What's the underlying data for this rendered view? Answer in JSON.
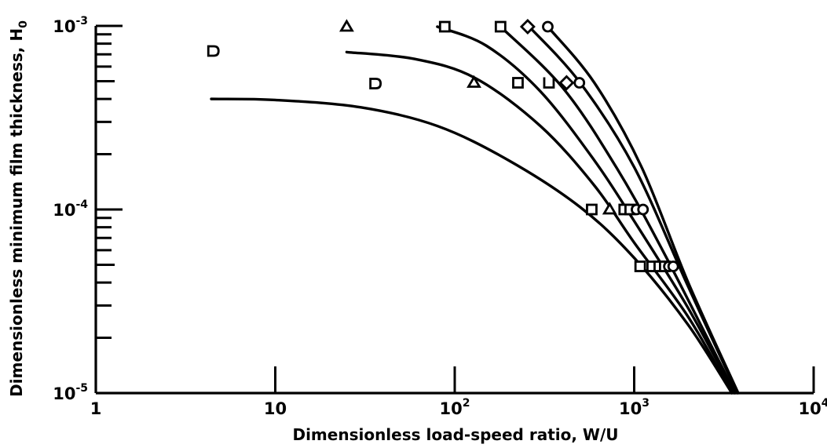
{
  "chart_data": {
    "type": "line",
    "title": "",
    "xlabel": "Dimensionless load-speed ratio, W/U",
    "ylabel_main": "Dimensionless minimum film thickness, H",
    "ylabel_sub": "0",
    "xscale": "log",
    "yscale": "log",
    "xlim": [
      1,
      10000
    ],
    "ylim": [
      1e-05,
      0.001
    ],
    "grid": false,
    "legend": "none",
    "x_ticks": [
      {
        "base": "1",
        "exp": ""
      },
      {
        "base": "10",
        "exp": ""
      },
      {
        "base": "10",
        "exp": "2"
      },
      {
        "base": "10",
        "exp": "3"
      },
      {
        "base": "10",
        "exp": "4"
      }
    ],
    "y_ticks": [
      {
        "base": "10",
        "exp": "-5"
      },
      {
        "base": "10",
        "exp": "-4"
      },
      {
        "base": "10",
        "exp": "-3"
      }
    ],
    "series": [
      {
        "curve": [
          [
            4.4,
            0.0004
          ],
          [
            10,
            0.000395
          ],
          [
            30,
            0.00036
          ],
          [
            80,
            0.000285
          ],
          [
            200,
            0.000185
          ],
          [
            500,
            0.000103
          ],
          [
            1000,
            5.45e-05
          ],
          [
            2000,
            2.35e-05
          ],
          [
            3500,
            1e-05
          ]
        ],
        "points": [
          {
            "marker": "D",
            "x": 4.5,
            "y": 0.00073
          },
          {
            "marker": "D",
            "x": 36,
            "y": 0.000485
          },
          {
            "marker": "square",
            "x": 580,
            "y": 0.0001
          },
          {
            "marker": "square",
            "x": 1080,
            "y": 4.9e-05
          }
        ]
      },
      {
        "curve": [
          [
            25,
            0.00072
          ],
          [
            60,
            0.00066
          ],
          [
            130,
            0.00052
          ],
          [
            300,
            0.000285
          ],
          [
            600,
            0.000135
          ],
          [
            1000,
            6.6e-05
          ],
          [
            2000,
            2.6e-05
          ],
          [
            3500,
            1e-05
          ]
        ],
        "points": [
          {
            "marker": "triangle",
            "x": 25,
            "y": 0.00099
          },
          {
            "marker": "triangle",
            "x": 128,
            "y": 0.00049
          },
          {
            "marker": "triangle",
            "x": 730,
            "y": 0.0001
          },
          {
            "marker": "square",
            "x": 1260,
            "y": 4.9e-05
          }
        ]
      },
      {
        "curve": [
          [
            80,
            0.00099
          ],
          [
            150,
            0.00078
          ],
          [
            300,
            0.00044
          ],
          [
            600,
            0.000185
          ],
          [
            1000,
            8.65e-05
          ],
          [
            2000,
            2.9e-05
          ],
          [
            3600,
            1e-05
          ]
        ],
        "points": [
          {
            "marker": "square",
            "x": 88,
            "y": 0.00099
          },
          {
            "marker": "square",
            "x": 225,
            "y": 0.00049
          },
          {
            "marker": "square",
            "x": 880,
            "y": 0.0001
          },
          {
            "marker": "square",
            "x": 1380,
            "y": 4.9e-05
          }
        ]
      },
      {
        "curve": [
          [
            180,
            0.00099
          ],
          [
            400,
            0.00046
          ],
          [
            800,
            0.000168
          ],
          [
            1500,
            5.55e-05
          ],
          [
            3650,
            1e-05
          ]
        ],
        "points": [
          {
            "marker": "square",
            "x": 180,
            "y": 0.00099
          },
          {
            "marker": "U",
            "x": 335,
            "y": 0.00049
          },
          {
            "marker": "square",
            "x": 950,
            "y": 0.0001
          },
          {
            "marker": "square",
            "x": 1480,
            "y": 4.9e-05
          }
        ]
      },
      {
        "curve": [
          [
            260,
            0.00099
          ],
          [
            500,
            0.00049
          ],
          [
            1000,
            0.00017
          ],
          [
            2000,
            3.8e-05
          ],
          [
            3750,
            1e-05
          ]
        ],
        "points": [
          {
            "marker": "diamond",
            "x": 255,
            "y": 0.00099
          },
          {
            "marker": "diamond",
            "x": 420,
            "y": 0.00049
          },
          {
            "marker": "circle",
            "x": 1030,
            "y": 0.0001
          },
          {
            "marker": "circle",
            "x": 1560,
            "y": 4.9e-05
          }
        ]
      },
      {
        "curve": [
          [
            330,
            0.00099
          ],
          [
            600,
            0.00049
          ],
          [
            1100,
            0.00017
          ],
          [
            2000,
            4e-05
          ],
          [
            3800,
            1e-05
          ]
        ],
        "points": [
          {
            "marker": "circle",
            "x": 330,
            "y": 0.00099
          },
          {
            "marker": "circle",
            "x": 495,
            "y": 0.00049
          },
          {
            "marker": "circle",
            "x": 1120,
            "y": 0.0001
          },
          {
            "marker": "circle",
            "x": 1650,
            "y": 4.9e-05
          }
        ]
      }
    ]
  }
}
